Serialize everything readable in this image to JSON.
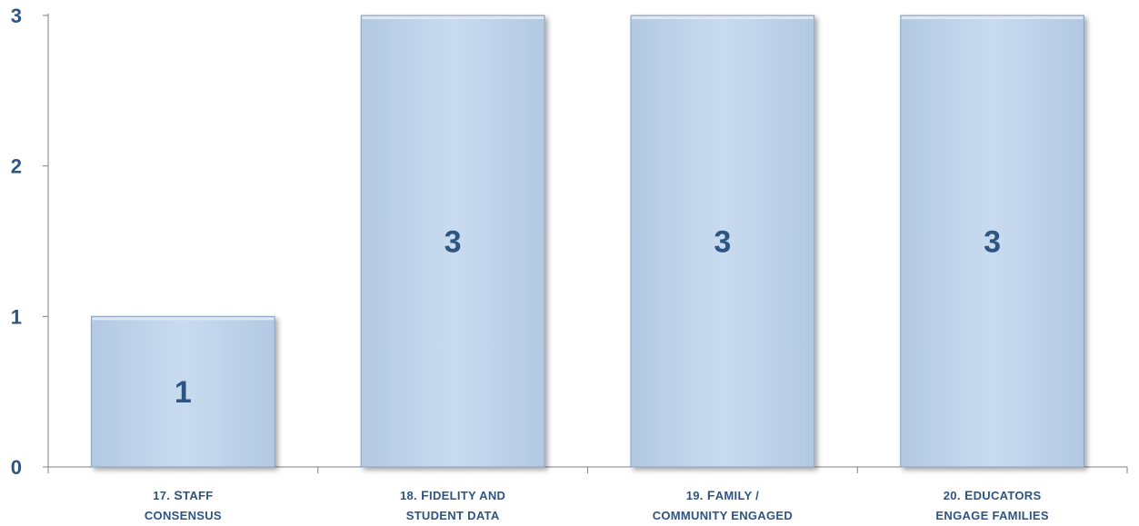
{
  "chart_data": {
    "type": "bar",
    "categories": [
      [
        "17. Staff",
        "consensus"
      ],
      [
        "18. Fidelity and",
        "student data"
      ],
      [
        "19. Family /",
        "community engaged"
      ],
      [
        "20. Educators",
        "engage families"
      ]
    ],
    "values": [
      1,
      3,
      3,
      3
    ],
    "ylim": [
      0,
      3
    ],
    "yticks": [
      "0",
      "1",
      "2",
      "3"
    ],
    "data_labels": [
      "1",
      "3",
      "3",
      "3"
    ],
    "grid": false,
    "legend": "none",
    "colors": {
      "bar_fill_top": "#c9dcf0",
      "bar_fill_bottom": "#b7cfe9",
      "bar_stroke": "#8ea3bd",
      "axis": "#808080",
      "text": "#2E5482"
    }
  }
}
